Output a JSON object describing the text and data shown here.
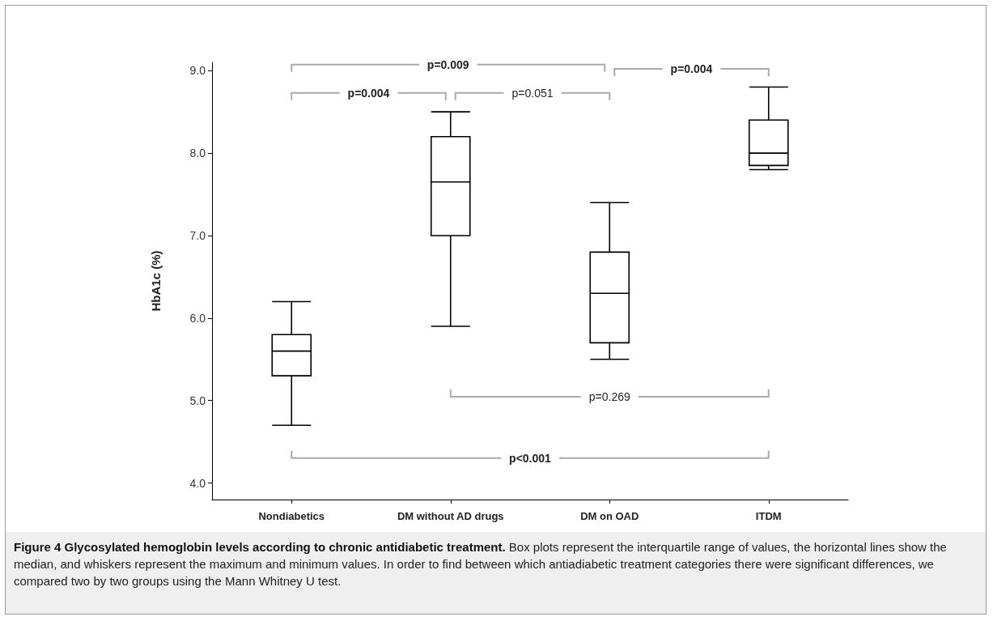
{
  "chart_data": {
    "type": "box",
    "title": "Figure 4 Glycosylated hemoglobin levels according to chronic antidiabetic treatment.",
    "ylabel": "HbA1c (%)",
    "categories": [
      "Nondiabetics",
      "DM without AD drugs",
      "DM on OAD",
      "ITDM"
    ],
    "boxes": [
      {
        "low": 4.7,
        "q1": 5.3,
        "median": 5.6,
        "q3": 5.8,
        "high": 6.2
      },
      {
        "low": 5.9,
        "q1": 7.0,
        "median": 7.65,
        "q3": 8.2,
        "high": 8.5
      },
      {
        "low": 5.5,
        "q1": 5.7,
        "median": 6.3,
        "q3": 6.8,
        "high": 7.4
      },
      {
        "low": 7.8,
        "q1": 7.85,
        "median": 8.0,
        "q3": 8.4,
        "high": 8.8
      }
    ],
    "color": "#ffffff",
    "ylim": [
      3.8,
      9.1
    ],
    "yticks": [
      {
        "value": 4,
        "label": "4.0"
      },
      {
        "value": 5,
        "label": "5.0"
      },
      {
        "value": 6,
        "label": "6.0"
      },
      {
        "value": 7,
        "label": "7.0"
      },
      {
        "value": 8,
        "label": "8.0"
      },
      {
        "value": 9,
        "label": "9.0"
      }
    ],
    "grid": false,
    "annotations": [
      "p=0.009",
      "p=0.004",
      "p=0.051",
      "p=0.004",
      "p=0.269",
      "p<0.001",
      "Box plots represent the interquartile range of values, the horizontal lines show the median, and whiskers represent the maximum and minimum values. In order to find between which antiadiabetic treatment categories there were significant differences, we compared two by two groups using the Mann Whitney U test."
    ]
  }
}
